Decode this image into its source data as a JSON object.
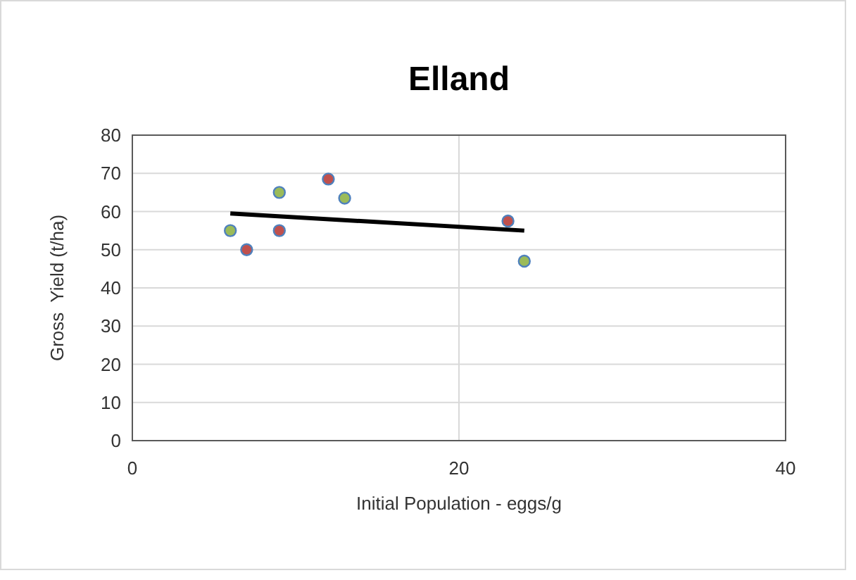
{
  "chart_data": {
    "type": "scatter",
    "title": "Elland",
    "xlabel": "Initial Population - eggs/g",
    "ylabel": "Gross  Yield (t/ha)",
    "xlim": [
      0,
      40
    ],
    "xticks": [
      0,
      20,
      40
    ],
    "ylim": [
      0,
      80
    ],
    "yticks": [
      0,
      10,
      20,
      30,
      40,
      50,
      60,
      70,
      80
    ],
    "grid": true,
    "series": [
      {
        "color": "#9bbb59",
        "marker": "circle",
        "x": [
          6,
          9,
          13,
          24
        ],
        "values": [
          55,
          65,
          63.5,
          47
        ]
      },
      {
        "color": "#c0504d",
        "marker": "circle",
        "x": [
          7,
          9,
          12,
          23
        ],
        "values": [
          50,
          55,
          68.5,
          57.5
        ]
      },
      {
        "type": "line",
        "color": "#000000",
        "x": [
          6,
          24
        ],
        "values": [
          59.5,
          55
        ],
        "marker": "none",
        "line_style": "solid"
      }
    ]
  }
}
